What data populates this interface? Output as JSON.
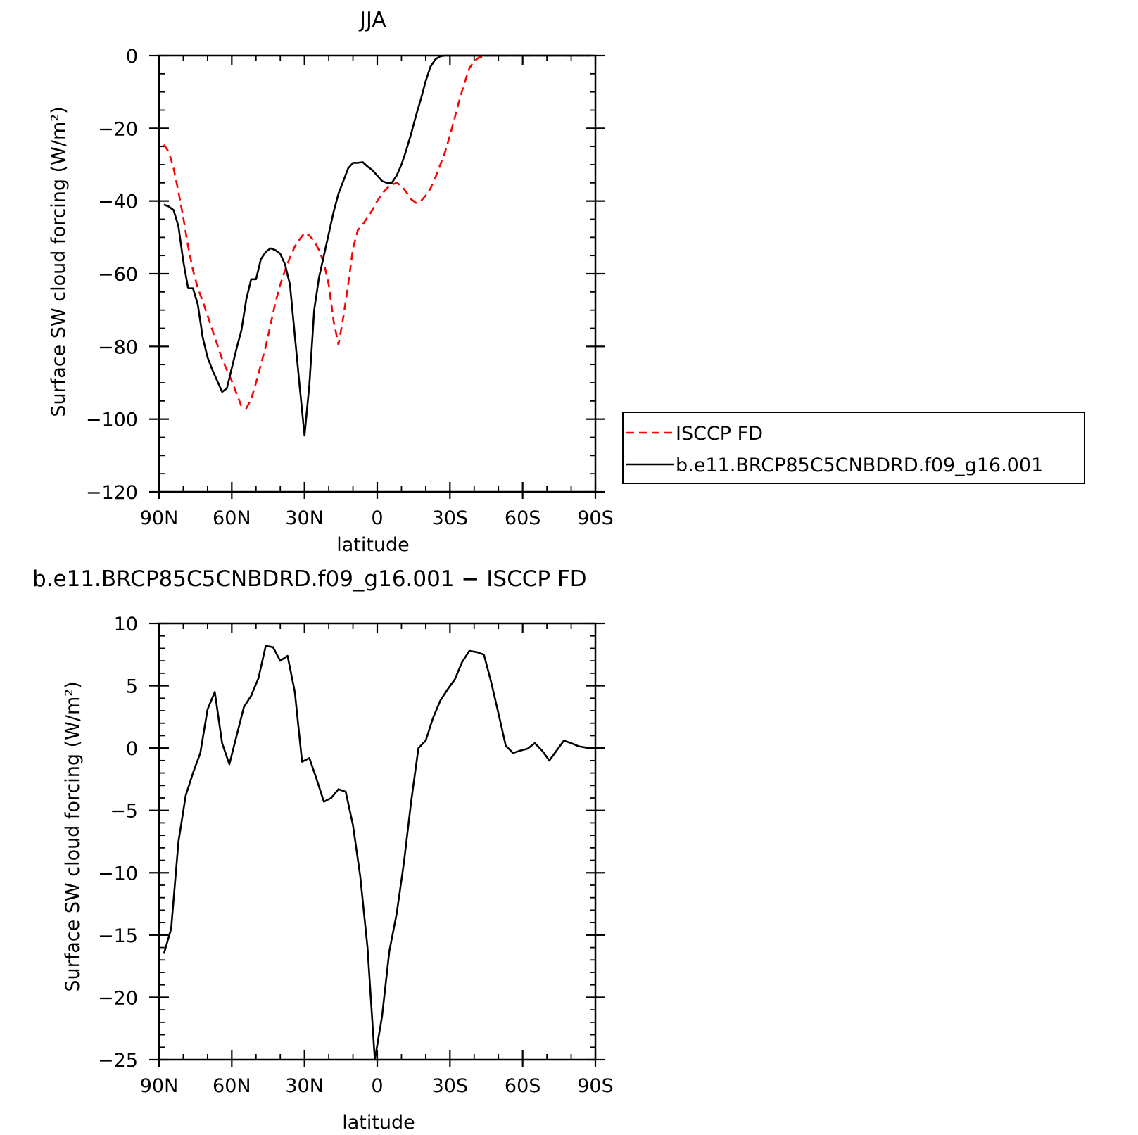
{
  "chart_data": [
    {
      "type": "line",
      "title": "JJA",
      "xlabel": "latitude",
      "ylabel": "Surface SW cloud forcing (W/m²)",
      "xlim": [
        -90,
        90
      ],
      "ylim": [
        -120,
        0
      ],
      "x_ticks": [
        -90,
        -60,
        -30,
        0,
        30,
        60,
        90
      ],
      "x_tick_labels": [
        "90N",
        "60N",
        "30N",
        "0",
        "30S",
        "60S",
        "90S"
      ],
      "y_ticks": [
        0,
        -20,
        -40,
        -60,
        -80,
        -100,
        -120
      ],
      "y_tick_labels": [
        "0",
        "−20",
        "−40",
        "−60",
        "−80",
        "−100",
        "−120"
      ],
      "grid": false,
      "legend": "right",
      "series": [
        {
          "name": "ISCCP FD",
          "color": "#ff0000",
          "style": "dashed",
          "x": [
            -88,
            -86,
            -84,
            -82,
            -80,
            -78,
            -76,
            -74,
            -72,
            -70,
            -68,
            -66,
            -64,
            -62,
            -60,
            -58,
            -56,
            -54,
            -52,
            -50,
            -48,
            -46,
            -44,
            -42,
            -40,
            -38,
            -36,
            -34,
            -32,
            -30,
            -28,
            -26,
            -24,
            -22,
            -20,
            -18,
            -16,
            -14,
            -12,
            -10,
            -8,
            -6,
            -4,
            -2,
            0,
            2,
            4,
            6,
            8,
            10,
            12,
            14,
            16,
            18,
            20,
            22,
            24,
            26,
            28,
            30,
            32,
            34,
            36,
            38,
            40,
            42,
            44,
            46,
            48,
            50,
            52,
            54,
            56,
            58,
            60,
            62,
            64,
            66,
            68,
            70,
            72,
            74,
            76,
            78,
            80,
            82,
            84,
            86,
            88
          ],
          "y": [
            -24.5,
            -26.5,
            -31.0,
            -37.5,
            -44.5,
            -52.5,
            -59.0,
            -64.0,
            -67.5,
            -71.5,
            -75.5,
            -79.5,
            -83.5,
            -86.5,
            -89.5,
            -93.0,
            -96.5,
            -97.0,
            -94.5,
            -90.0,
            -85.0,
            -80.0,
            -74.0,
            -68.0,
            -63.0,
            -59.0,
            -55.5,
            -52.5,
            -50.5,
            -48.8,
            -49.5,
            -51.0,
            -53.5,
            -57.0,
            -63.0,
            -73.0,
            -79.5,
            -72.0,
            -63.0,
            -53.0,
            -48.0,
            -46.5,
            -44.5,
            -42.5,
            -40.0,
            -38.0,
            -36.5,
            -35.5,
            -35.0,
            -35.8,
            -37.5,
            -39.5,
            -40.5,
            -40.0,
            -38.5,
            -36.5,
            -33.5,
            -30.0,
            -26.5,
            -22.0,
            -17.0,
            -12.0,
            -7.5,
            -3.5,
            -1.5,
            -0.5,
            -0.2,
            0,
            0,
            0,
            0,
            0,
            0,
            0,
            0,
            0,
            0,
            0,
            0,
            0,
            0,
            0,
            0,
            0,
            0,
            0,
            0,
            0,
            0
          ]
        },
        {
          "name": "b.e11.BRCP85C5CNBDRD.f09_g16.001",
          "color": "#000000",
          "style": "solid",
          "x": [
            -88,
            -86,
            -84,
            -82,
            -80,
            -78,
            -76,
            -74,
            -72,
            -70,
            -68,
            -66,
            -64,
            -62,
            -60,
            -58,
            -56,
            -54,
            -52,
            -50,
            -48,
            -46,
            -44,
            -42,
            -40,
            -38,
            -36,
            -34,
            -32,
            -30,
            -28,
            -26,
            -24,
            -22,
            -20,
            -18,
            -16,
            -14,
            -12,
            -10,
            -8,
            -6,
            -4,
            -2,
            0,
            2,
            4,
            6,
            8,
            10,
            12,
            14,
            16,
            18,
            20,
            22,
            24,
            26,
            28,
            30,
            32,
            34,
            36,
            38,
            40,
            42,
            44,
            46,
            48,
            50,
            52,
            54,
            56,
            58,
            60,
            62,
            64,
            66,
            68,
            70,
            72,
            74,
            76,
            78,
            80,
            82,
            84,
            86,
            88
          ],
          "y": [
            -41.0,
            -41.5,
            -42.5,
            -47.0,
            -56.5,
            -64.0,
            -64.0,
            -68.5,
            -77.5,
            -83.0,
            -86.5,
            -89.5,
            -92.5,
            -91.5,
            -86.0,
            -80.5,
            -75.5,
            -67.0,
            -61.5,
            -61.5,
            -56.0,
            -54.0,
            -53.0,
            -53.5,
            -54.5,
            -57.5,
            -63.0,
            -77.0,
            -91.0,
            -104.5,
            -90.5,
            -70.0,
            -61.0,
            -55.0,
            -49.0,
            -43.0,
            -38.0,
            -34.5,
            -31.0,
            -29.5,
            -29.5,
            -29.3,
            -30.5,
            -31.5,
            -33.0,
            -34.5,
            -35.0,
            -35.0,
            -33.0,
            -30.0,
            -26.0,
            -21.5,
            -16.5,
            -12.0,
            -7.0,
            -3.0,
            -1.0,
            -0.2,
            0,
            0,
            0,
            0,
            0,
            0,
            0,
            0,
            0,
            0,
            0,
            0,
            0,
            0,
            0,
            0,
            0,
            0,
            0,
            0,
            0,
            0,
            0,
            0,
            0,
            0,
            0,
            0,
            0,
            0,
            0
          ]
        }
      ]
    },
    {
      "type": "line",
      "title": "b.e11.BRCP85C5CNBDRD.f09_g16.001 − ISCCP FD",
      "xlabel": "latitude",
      "ylabel": "Surface SW cloud forcing (W/m²)",
      "xlim": [
        -90,
        90
      ],
      "ylim": [
        -25,
        10
      ],
      "x_ticks": [
        -90,
        -60,
        -30,
        0,
        30,
        60,
        90
      ],
      "x_tick_labels": [
        "90N",
        "60N",
        "30N",
        "0",
        "30S",
        "60S",
        "90S"
      ],
      "y_ticks": [
        10,
        5,
        0,
        -5,
        -10,
        -15,
        -20,
        -25
      ],
      "y_tick_labels": [
        "10",
        "5",
        "0",
        "−5",
        "−10",
        "−15",
        "−20",
        "−25"
      ],
      "grid": false,
      "series": [
        {
          "color": "#000000",
          "style": "solid",
          "x": [
            -88,
            -85,
            -82,
            -79,
            -76,
            -73,
            -70,
            -67,
            -64,
            -61,
            -58,
            -55,
            -52,
            -49,
            -46,
            -43,
            -40,
            -37,
            -34,
            -31,
            -28,
            -25,
            -22,
            -19,
            -16,
            -13,
            -10,
            -7,
            -4,
            -1,
            2,
            5,
            8,
            11,
            14,
            17,
            20,
            23,
            26,
            29,
            32,
            35,
            38,
            41,
            44,
            47,
            50,
            53,
            56,
            59,
            62,
            65,
            68,
            71,
            74,
            77,
            80,
            83,
            86,
            89
          ],
          "y": [
            -16.5,
            -14.5,
            -7.5,
            -3.8,
            -2.0,
            -0.4,
            3.1,
            4.5,
            0.4,
            -1.3,
            1.0,
            3.3,
            4.2,
            5.6,
            8.2,
            8.1,
            7.0,
            7.4,
            4.5,
            -1.1,
            -0.8,
            -2.5,
            -4.3,
            -4.0,
            -3.3,
            -3.5,
            -6.2,
            -10.3,
            -16.0,
            -25.0,
            -21.5,
            -16.3,
            -13.3,
            -9.2,
            -4.3,
            0.0,
            0.6,
            2.4,
            3.8,
            4.7,
            5.5,
            6.9,
            7.8,
            7.7,
            7.5,
            5.3,
            2.8,
            0.2,
            -0.4,
            -0.2,
            -0.05,
            0.4,
            -0.2,
            -1.0,
            -0.2,
            0.6,
            0.4,
            0.15,
            0.05,
            0.0
          ]
        }
      ]
    }
  ]
}
